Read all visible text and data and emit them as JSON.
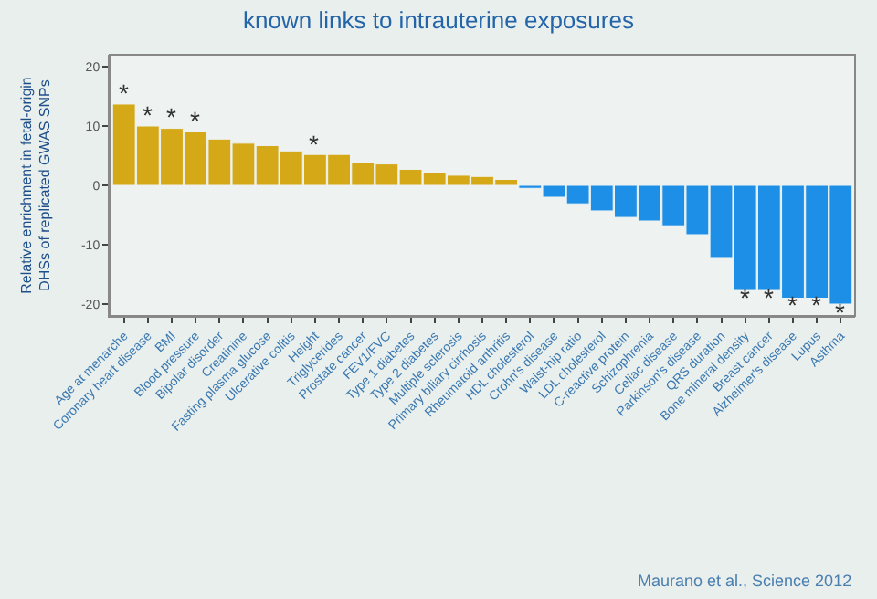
{
  "chart_data": {
    "type": "bar",
    "title": "known links to intrauterine exposures",
    "ylabel": "Relative enrichment in fetal-origin\nDHSs of replicated GWAS SNPs",
    "categories": [
      "Age at menarche",
      "Coronary heart disease",
      "BMI",
      "Blood pressure",
      "Bipolar disorder",
      "Creatinine",
      "Fasting plasma glucose",
      "Ulcerative colitis",
      "Height",
      "Triglycerides",
      "Prostate cancer",
      "FEV1/FVC",
      "Type 1 diabetes",
      "Type 2 diabetes",
      "Multiple sclerosis",
      "Primary biliary cirrhosis",
      "Rheumatoid arthritis",
      "HDL cholesterol",
      "Crohn's disease",
      "Waist-hip ratio",
      "LDL cholesterol",
      "C-reactive protein",
      "Schizophrenia",
      "Celiac disease",
      "Parkinson's disease",
      "QRS duration",
      "Bone mineral density",
      "Breast cancer",
      "Alzheimer's disease",
      "Lupus",
      "Asthma"
    ],
    "values": [
      13.7,
      10,
      9.6,
      9,
      7.8,
      7.1,
      6.7,
      5.8,
      5.2,
      5.2,
      3.8,
      3.6,
      2.7,
      2.1,
      1.7,
      1.5,
      1,
      -0.5,
      -2,
      -3.1,
      -4.3,
      -5.4,
      -6,
      -6.8,
      -8.3,
      -12.3,
      -17.7,
      -17.7,
      -19,
      -19,
      -20
    ],
    "colors": [
      "#d4a817",
      "#d4a817",
      "#d4a817",
      "#d4a817",
      "#d4a817",
      "#d4a817",
      "#d4a817",
      "#d4a817",
      "#d4a817",
      "#d4a817",
      "#d4a817",
      "#d4a817",
      "#d4a817",
      "#d4a817",
      "#d4a817",
      "#d4a817",
      "#d4a817",
      "#1e8fe6",
      "#1e8fe6",
      "#1e8fe6",
      "#1e8fe6",
      "#1e8fe6",
      "#1e8fe6",
      "#1e8fe6",
      "#1e8fe6",
      "#1e8fe6",
      "#1e8fe6",
      "#1e8fe6",
      "#1e8fe6",
      "#1e8fe6",
      "#1e8fe6"
    ],
    "ylim": [
      -22,
      22
    ],
    "yticks": [
      -20,
      -10,
      0,
      10,
      20
    ],
    "grid": false,
    "legend": false,
    "annotations": [
      {
        "text": "*",
        "x": "Age at menarche",
        "y": 13.7
      },
      {
        "text": "*",
        "x": "Coronary heart disease",
        "y": 10
      },
      {
        "text": "*",
        "x": "BMI",
        "y": 9.6
      },
      {
        "text": "*",
        "x": "Blood pressure",
        "y": 9
      },
      {
        "text": "*",
        "x": "Height",
        "y": 5.2
      },
      {
        "text": "*",
        "x": "Bone mineral density",
        "y": -17.7
      },
      {
        "text": "*",
        "x": "Breast cancer",
        "y": -17.7
      },
      {
        "text": "*",
        "x": "Alzheimer's disease",
        "y": -19
      },
      {
        "text": "*",
        "x": "Lupus",
        "y": -19
      },
      {
        "text": "*",
        "x": "Asthma",
        "y": -20
      },
      "Maurano et al., Science 2012"
    ]
  }
}
